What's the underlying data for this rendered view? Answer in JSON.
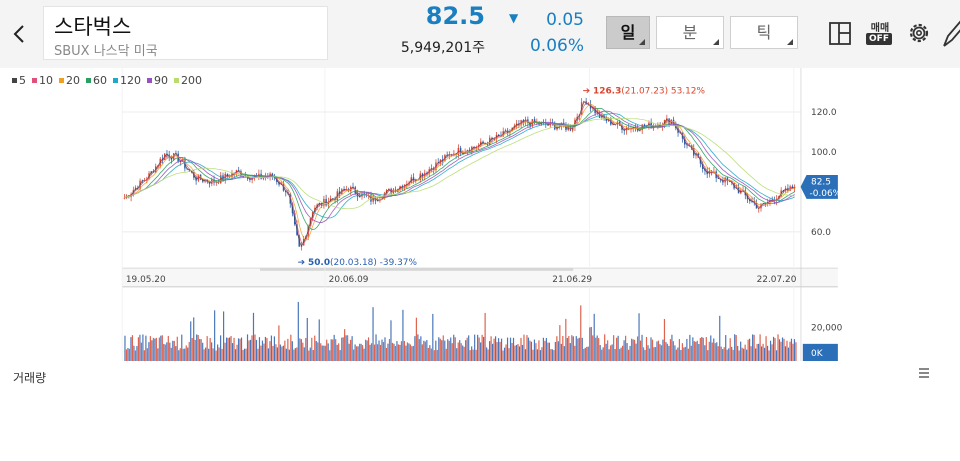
{
  "header": {
    "stock_name": "스타벅스",
    "stock_sub": "SBUX 나스닥 미국",
    "price": "82.5",
    "volume": "5,949,201주",
    "change_arrow": "▼",
    "change_value": "0.05",
    "change_pct": "0.06%"
  },
  "period_tabs": [
    {
      "label": "일",
      "active": true
    },
    {
      "label": "분",
      "active": false
    },
    {
      "label": "틱",
      "active": false
    }
  ],
  "toolbar": {
    "trade_top": "매매",
    "trade_badge": "OFF",
    "icons": [
      "back-icon",
      "layout-icon",
      "gear-icon",
      "pen-icon"
    ]
  },
  "legend": [
    {
      "label": "5",
      "color": "#444444"
    },
    {
      "label": "10",
      "color": "#e0507a"
    },
    {
      "label": "20",
      "color": "#f0a020"
    },
    {
      "label": "60",
      "color": "#2aa060"
    },
    {
      "label": "120",
      "color": "#20a8c8"
    },
    {
      "label": "90",
      "color": "#9a50c0"
    },
    {
      "label": "200",
      "color": "#b8dc70"
    }
  ],
  "colors": {
    "up": "#d9462f",
    "down": "#2a5fb0",
    "accent": "#1a7fc0",
    "grid": "#e6e6e6"
  },
  "chart_data": {
    "type": "line",
    "ylim": [
      42,
      142
    ],
    "y_ticks": [
      "120.0",
      "100.0",
      "60.0"
    ],
    "x_ticks": [
      "19.05.20",
      "20.06.09",
      "21.06.29",
      "22.07.20"
    ],
    "price_series": [
      {
        "x": "2019-05-20",
        "y": 77
      },
      {
        "x": "2019-07-01",
        "y": 88
      },
      {
        "x": "2019-07-29",
        "y": 99
      },
      {
        "x": "2019-08-20",
        "y": 97
      },
      {
        "x": "2019-09-20",
        "y": 87
      },
      {
        "x": "2019-10-20",
        "y": 85
      },
      {
        "x": "2019-12-01",
        "y": 90
      },
      {
        "x": "2019-12-31",
        "y": 87
      },
      {
        "x": "2020-02-01",
        "y": 88
      },
      {
        "x": "2020-02-25",
        "y": 80
      },
      {
        "x": "2020-03-18",
        "y": 50
      },
      {
        "x": "2020-04-10",
        "y": 72
      },
      {
        "x": "2020-05-15",
        "y": 77
      },
      {
        "x": "2020-06-09",
        "y": 82
      },
      {
        "x": "2020-07-20",
        "y": 76
      },
      {
        "x": "2020-09-01",
        "y": 82
      },
      {
        "x": "2020-10-20",
        "y": 90
      },
      {
        "x": "2020-12-10",
        "y": 100
      },
      {
        "x": "2021-01-20",
        "y": 103
      },
      {
        "x": "2021-03-01",
        "y": 108
      },
      {
        "x": "2021-04-10",
        "y": 115
      },
      {
        "x": "2021-06-29",
        "y": 112
      },
      {
        "x": "2021-07-23",
        "y": 126.3
      },
      {
        "x": "2021-08-20",
        "y": 117
      },
      {
        "x": "2021-09-30",
        "y": 112
      },
      {
        "x": "2021-11-10",
        "y": 113
      },
      {
        "x": "2021-12-20",
        "y": 116
      },
      {
        "x": "2022-01-15",
        "y": 103
      },
      {
        "x": "2022-02-20",
        "y": 90
      },
      {
        "x": "2022-04-01",
        "y": 84
      },
      {
        "x": "2022-05-20",
        "y": 72
      },
      {
        "x": "2022-06-20",
        "y": 78
      },
      {
        "x": "2022-07-20",
        "y": 82.5
      }
    ],
    "annotations": [
      {
        "date": "2021-07-23",
        "value": "126.3",
        "detail": "(21.07.23) 53.12%",
        "arrow": "➔",
        "kind": "high"
      },
      {
        "date": "2020-03-18",
        "value": "50.0",
        "detail": "(20.03.18) -39.37%",
        "arrow": "➔",
        "kind": "low"
      }
    ],
    "last_badge": {
      "value": "82.5",
      "pct": "-0.06%"
    },
    "volume_axis": {
      "tick": "20,000",
      "zero": "0K"
    }
  },
  "volume_label": "거래량"
}
